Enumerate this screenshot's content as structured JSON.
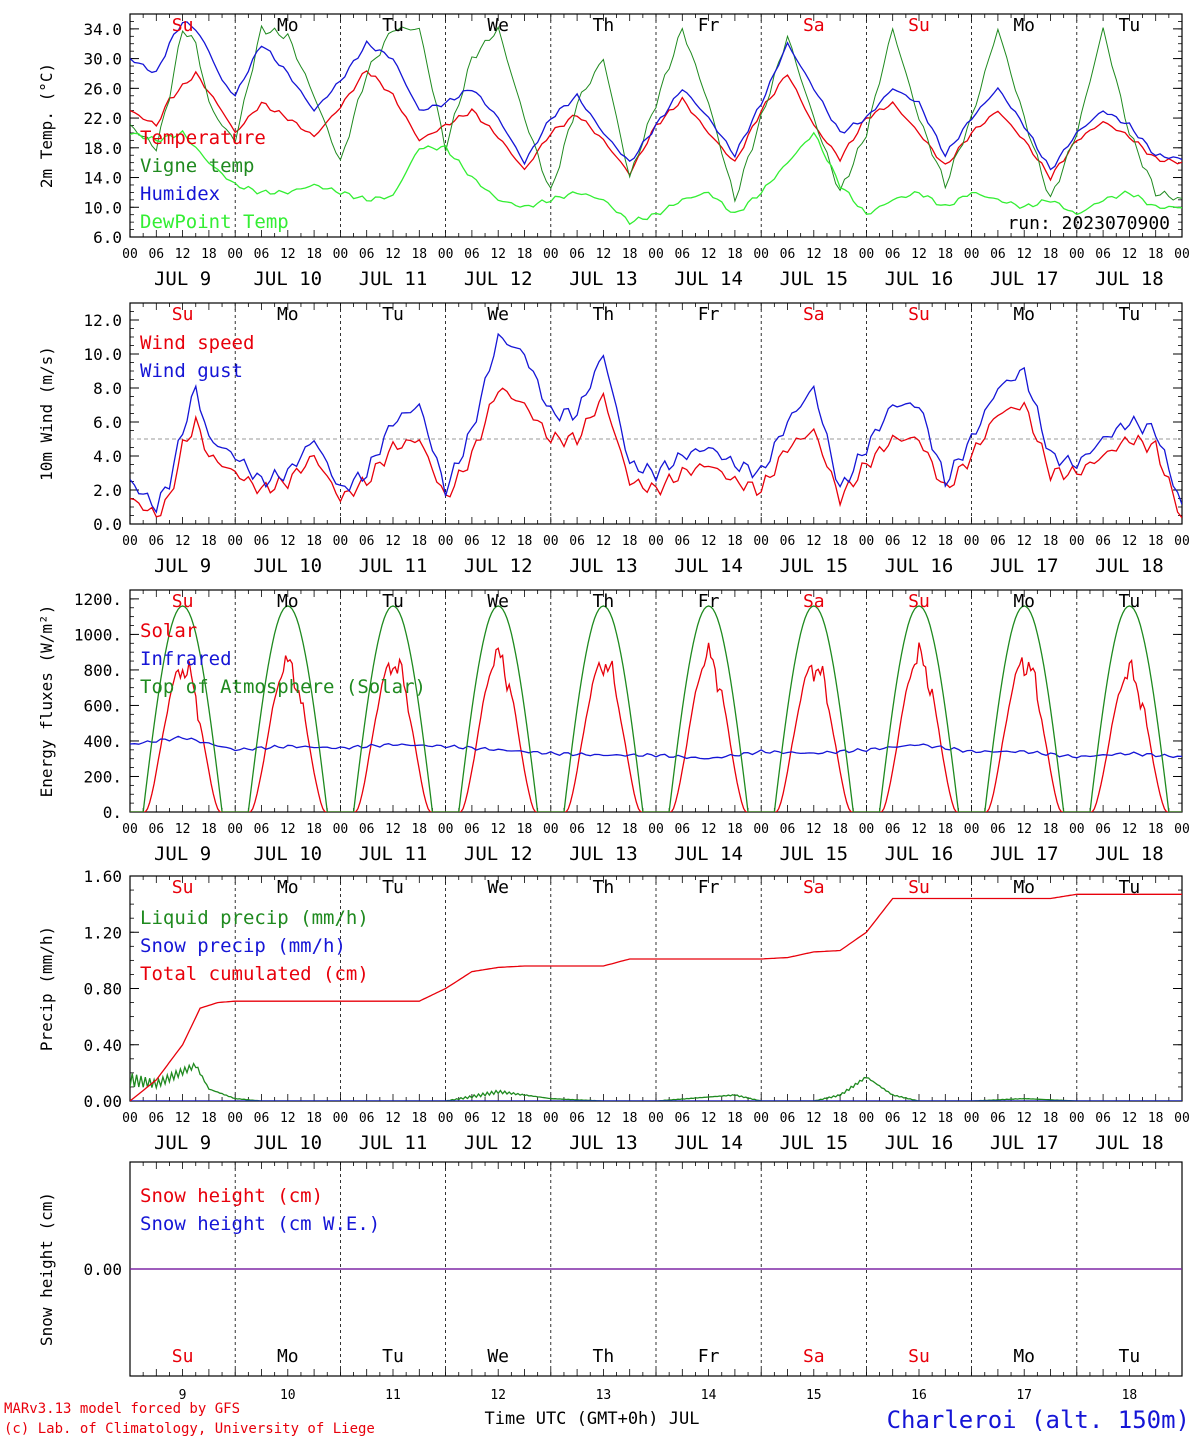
{
  "colors": {
    "red": "#e8000b",
    "green": "#1f8a1f",
    "blue": "#1515d6",
    "light_green": "#33ee33",
    "purple": "#7a1fa2",
    "grey": "#999999"
  },
  "time_axis": {
    "hour_ticks": [
      "00",
      "06",
      "12",
      "18"
    ],
    "final_tick": "00",
    "date_labels": [
      "JUL  9",
      "JUL 10",
      "JUL 11",
      "JUL 12",
      "JUL 13",
      "JUL 14",
      "JUL 15",
      "JUL 16",
      "JUL 17",
      "JUL 18"
    ],
    "day_numbers": [
      "9",
      "10",
      "11",
      "12",
      "13",
      "14",
      "15",
      "16",
      "17",
      "18"
    ]
  },
  "weekdays": [
    {
      "label": "Su",
      "color": "#e8000b"
    },
    {
      "label": "Mo",
      "color": "#000000"
    },
    {
      "label": "Tu",
      "color": "#000000"
    },
    {
      "label": "We",
      "color": "#000000"
    },
    {
      "label": "Th",
      "color": "#000000"
    },
    {
      "label": "Fr",
      "color": "#000000"
    },
    {
      "label": "Sa",
      "color": "#e8000b"
    },
    {
      "label": "Su",
      "color": "#e8000b"
    },
    {
      "label": "Mo",
      "color": "#000000"
    },
    {
      "label": "Tu",
      "color": "#000000"
    }
  ],
  "footer": {
    "credit_line1": "MARv3.13 model forced by GFS",
    "credit_line2": "(c) Lab. of Climatology, University of Liege",
    "xlabel": "Time UTC (GMT+0h) JUL",
    "station": "Charleroi (alt. 150m)"
  },
  "chart_data": [
    {
      "type": "line",
      "ylabel": "2m Temp. (°C)",
      "ylim": [
        6,
        36
      ],
      "yticks": [
        6,
        10,
        14,
        18,
        22,
        26,
        30,
        34
      ],
      "ytick_labels": [
        "6.0",
        "10.0",
        "14.0",
        "18.0",
        "22.0",
        "26.0",
        "30.0",
        "34.0"
      ],
      "annotation": "run: 2023070900",
      "x_unit": "hours since JUL 9 00 UTC",
      "series": [
        {
          "name": "Temperature",
          "color": "#e8000b",
          "x": [
            0,
            6,
            9,
            15,
            21,
            24,
            30,
            36,
            42,
            48,
            54,
            60,
            66,
            72,
            78,
            84,
            90,
            96,
            102,
            108,
            114,
            120,
            126,
            132,
            138,
            144,
            150,
            156,
            162,
            168,
            174,
            180,
            186,
            192,
            198,
            204,
            210,
            216,
            222,
            228,
            234,
            240
          ],
          "y": [
            23,
            21,
            24.5,
            28,
            23,
            20,
            24,
            22,
            19.5,
            23.5,
            28.5,
            25,
            19,
            21,
            23,
            19.5,
            15,
            20,
            22.5,
            19,
            14.5,
            21,
            24.5,
            20,
            16,
            23,
            28,
            21,
            16.5,
            22,
            24,
            20,
            15.5,
            20,
            23,
            19,
            14,
            19,
            21.5,
            19.5,
            16.5,
            16
          ]
        },
        {
          "name": "Vigne temp",
          "color": "#1f8a1f",
          "x": [
            0,
            6,
            9,
            12,
            15,
            18,
            21,
            24,
            30,
            36,
            42,
            48,
            54,
            60,
            66,
            72,
            78,
            84,
            90,
            96,
            102,
            108,
            114,
            120,
            126,
            132,
            138,
            144,
            150,
            156,
            162,
            168,
            174,
            180,
            186,
            192,
            198,
            204,
            210,
            216,
            222,
            228,
            234,
            240
          ],
          "y": [
            21,
            18,
            25,
            34,
            32,
            24,
            21,
            19,
            34,
            33,
            25,
            16,
            28,
            34,
            34,
            18,
            30,
            34,
            22,
            12,
            24,
            30,
            14,
            24,
            34,
            24,
            11,
            22,
            33,
            22,
            12,
            20,
            34,
            22,
            13,
            22,
            34,
            22,
            11,
            20,
            34,
            20,
            12,
            11
          ]
        },
        {
          "name": "Humidex",
          "color": "#1515d6",
          "x": [
            0,
            6,
            9,
            12,
            15,
            18,
            21,
            24,
            30,
            36,
            42,
            48,
            54,
            60,
            66,
            72,
            78,
            84,
            90,
            96,
            102,
            108,
            114,
            120,
            126,
            132,
            138,
            144,
            150,
            156,
            162,
            168,
            174,
            180,
            186,
            192,
            198,
            204,
            210,
            216,
            222,
            228,
            234,
            240
          ],
          "y": [
            30,
            28,
            32,
            35,
            34,
            31,
            27,
            25,
            32,
            28,
            23,
            27,
            32,
            30,
            23,
            24,
            26,
            22,
            16,
            22,
            25,
            20,
            16,
            21,
            26,
            22,
            17,
            24,
            32,
            26,
            20,
            22,
            26,
            24,
            17,
            22,
            26,
            21,
            15,
            20,
            23,
            21,
            17,
            16.5
          ]
        },
        {
          "name": "DewPoint Temp",
          "color": "#33ee33",
          "x": [
            0,
            6,
            12,
            18,
            24,
            30,
            36,
            42,
            48,
            54,
            60,
            66,
            72,
            78,
            84,
            90,
            96,
            102,
            108,
            114,
            120,
            126,
            132,
            138,
            144,
            150,
            156,
            162,
            168,
            174,
            180,
            186,
            192,
            198,
            204,
            210,
            216,
            222,
            228,
            234,
            240
          ],
          "y": [
            20,
            19,
            20,
            16,
            13,
            12,
            12,
            13,
            12,
            11,
            11.5,
            18,
            18,
            14,
            11,
            10,
            11,
            12,
            11,
            8,
            9,
            11,
            12,
            9,
            12,
            16,
            20,
            13,
            9,
            11,
            12,
            10,
            12,
            11,
            10,
            11,
            9,
            11,
            12,
            10,
            10
          ]
        }
      ]
    },
    {
      "type": "line",
      "ylabel": "10m Wind (m/s)",
      "ylim": [
        0,
        13
      ],
      "yticks": [
        0,
        2,
        4,
        6,
        8,
        10,
        12
      ],
      "ytick_labels": [
        "0.0",
        "2.0",
        "4.0",
        "6.0",
        "8.0",
        "10.0",
        "12.0"
      ],
      "reference_line": 5,
      "series": [
        {
          "name": "Wind speed",
          "color": "#e8000b",
          "x": [
            0,
            6,
            9,
            12,
            15,
            18,
            21,
            24,
            30,
            36,
            42,
            48,
            54,
            60,
            66,
            72,
            78,
            84,
            90,
            96,
            102,
            108,
            114,
            120,
            126,
            132,
            138,
            144,
            150,
            156,
            162,
            168,
            174,
            180,
            186,
            192,
            198,
            204,
            210,
            216,
            222,
            228,
            234,
            240
          ],
          "y": [
            1.5,
            0.5,
            1.5,
            4.5,
            6,
            4,
            3.5,
            3,
            2,
            2.5,
            4,
            1.5,
            2.5,
            4.5,
            5,
            1.5,
            4,
            8,
            7,
            5,
            5,
            7.5,
            2.5,
            2,
            3,
            3.5,
            2.5,
            2,
            4.5,
            5.5,
            1.5,
            3.5,
            5,
            5,
            2,
            4,
            6.5,
            7,
            3,
            3,
            4,
            5,
            4.5,
            0.3
          ]
        },
        {
          "name": "Wind gust",
          "color": "#1515d6",
          "x": [
            0,
            6,
            9,
            12,
            15,
            18,
            21,
            24,
            30,
            36,
            42,
            48,
            54,
            60,
            66,
            72,
            78,
            84,
            90,
            96,
            102,
            108,
            114,
            120,
            126,
            132,
            138,
            144,
            150,
            156,
            162,
            168,
            174,
            180,
            186,
            192,
            198,
            204,
            210,
            216,
            222,
            228,
            234,
            240
          ],
          "y": [
            2.5,
            1,
            2.5,
            5.5,
            8,
            5,
            4.5,
            4,
            2.5,
            3,
            5,
            2,
            3,
            6,
            7,
            2,
            5.5,
            11,
            10,
            6.5,
            6.5,
            10,
            3.5,
            3,
            4,
            4.5,
            3.5,
            3,
            6,
            8,
            2,
            4.5,
            7,
            7,
            2.5,
            5,
            8,
            9,
            4,
            3.5,
            5,
            6,
            5.5,
            1
          ]
        }
      ]
    },
    {
      "type": "line",
      "ylabel": "Energy fluxes (W/m²)",
      "ylim": [
        0,
        1250
      ],
      "yticks": [
        0,
        200,
        400,
        600,
        800,
        1000,
        1200
      ],
      "ytick_labels": [
        "0.",
        "200.",
        "400.",
        "600.",
        "800.",
        "1000.",
        "1200."
      ],
      "series": [
        {
          "name": "Solar",
          "color": "#e8000b",
          "daily_peak": [
            820,
            820,
            850,
            860,
            850,
            860,
            830,
            860,
            850,
            780
          ]
        },
        {
          "name": "Infrared",
          "color": "#1515d6",
          "x": [
            0,
            12,
            24,
            36,
            48,
            60,
            72,
            84,
            96,
            108,
            120,
            132,
            144,
            156,
            168,
            180,
            192,
            204,
            216,
            228,
            240
          ],
          "y": [
            380,
            420,
            350,
            370,
            360,
            380,
            370,
            350,
            330,
            320,
            320,
            300,
            340,
            330,
            350,
            380,
            340,
            340,
            310,
            330,
            310
          ]
        },
        {
          "name": "Top of Atmosphere (Solar)",
          "color": "#1f8a1f",
          "daily_peak": [
            1160,
            1160,
            1160,
            1160,
            1160,
            1160,
            1160,
            1160,
            1160,
            1160
          ]
        }
      ]
    },
    {
      "type": "line",
      "ylabel": "Precip (mm/h)",
      "ylim": [
        0,
        1.6
      ],
      "yticks": [
        0,
        0.4,
        0.8,
        1.2,
        1.6
      ],
      "ytick_labels": [
        "0.00",
        "0.40",
        "0.80",
        "1.20",
        "1.60"
      ],
      "series": [
        {
          "name": "Liquid precip (mm/h)",
          "color": "#1f8a1f",
          "x": [
            0,
            6,
            12,
            15,
            18,
            24,
            30,
            48,
            72,
            84,
            96,
            108,
            120,
            138,
            144,
            156,
            162,
            168,
            174,
            180,
            192,
            204,
            216,
            240
          ],
          "y": [
            0.2,
            0.15,
            0.25,
            0.3,
            0.1,
            0.02,
            0,
            0,
            0,
            0.08,
            0.02,
            0,
            0,
            0.05,
            0,
            0,
            0.05,
            0.2,
            0.05,
            0,
            0,
            0.02,
            0,
            0
          ]
        },
        {
          "name": "Snow precip (mm/h)",
          "color": "#1515d6",
          "x": [
            0,
            240
          ],
          "y": [
            0,
            0
          ]
        },
        {
          "name": "Total cumulated (cm)",
          "color": "#e8000b",
          "x": [
            0,
            6,
            12,
            16,
            20,
            24,
            30,
            48,
            60,
            66,
            72,
            78,
            84,
            90,
            96,
            108,
            114,
            120,
            138,
            144,
            150,
            156,
            162,
            168,
            174,
            180,
            192,
            204,
            210,
            216,
            228,
            240
          ],
          "y": [
            0,
            0.15,
            0.4,
            0.66,
            0.7,
            0.71,
            0.71,
            0.71,
            0.71,
            0.71,
            0.8,
            0.92,
            0.95,
            0.96,
            0.96,
            0.96,
            1.01,
            1.01,
            1.01,
            1.01,
            1.02,
            1.06,
            1.07,
            1.2,
            1.44,
            1.44,
            1.44,
            1.44,
            1.44,
            1.47,
            1.47,
            1.47
          ]
        }
      ]
    },
    {
      "type": "line",
      "ylabel": "Snow height (cm)",
      "ylim": [
        -1,
        1
      ],
      "yticks": [
        0
      ],
      "ytick_labels": [
        "0.00"
      ],
      "series": [
        {
          "name": "Snow height (cm)",
          "color": "#e8000b",
          "x": [
            0,
            240
          ],
          "y": [
            0,
            0
          ]
        },
        {
          "name": "Snow height (cm W.E.)",
          "color": "#1515d6",
          "x": [
            0,
            240
          ],
          "y": [
            0,
            0
          ]
        }
      ]
    }
  ]
}
